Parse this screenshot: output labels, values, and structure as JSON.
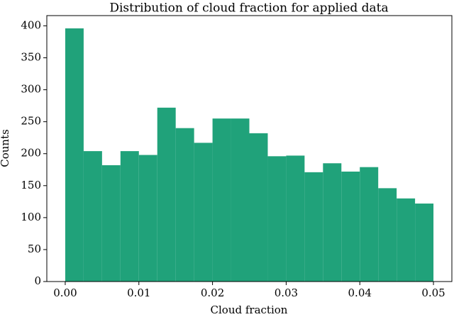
{
  "chart_data": {
    "type": "histogram",
    "title": "Distribution of cloud fraction for applied data",
    "xlabel": "Cloud fraction",
    "ylabel": "Counts",
    "bins": [
      0,
      0.0025,
      0.005,
      0.0075,
      0.01,
      0.0125,
      0.015,
      0.0175,
      0.02,
      0.0225,
      0.025,
      0.0275,
      0.03,
      0.0325,
      0.035,
      0.0375,
      0.04,
      0.0425,
      0.045,
      0.0475,
      0.05
    ],
    "values": [
      396,
      204,
      182,
      204,
      198,
      272,
      240,
      217,
      255,
      255,
      232,
      196,
      197,
      171,
      185,
      172,
      179,
      146,
      130,
      122
    ],
    "color": "#20a27a",
    "xlim": [
      -0.0025,
      0.0525
    ],
    "ylim": [
      0,
      416
    ],
    "xticks": [
      {
        "value": 0,
        "label": "0.00"
      },
      {
        "value": 0.01,
        "label": "0.01"
      },
      {
        "value": 0.02,
        "label": "0.02"
      },
      {
        "value": 0.03,
        "label": "0.03"
      },
      {
        "value": 0.04,
        "label": "0.04"
      },
      {
        "value": 0.05,
        "label": "0.05"
      }
    ],
    "yticks": [
      0,
      50,
      100,
      150,
      200,
      250,
      300,
      350,
      400
    ]
  }
}
